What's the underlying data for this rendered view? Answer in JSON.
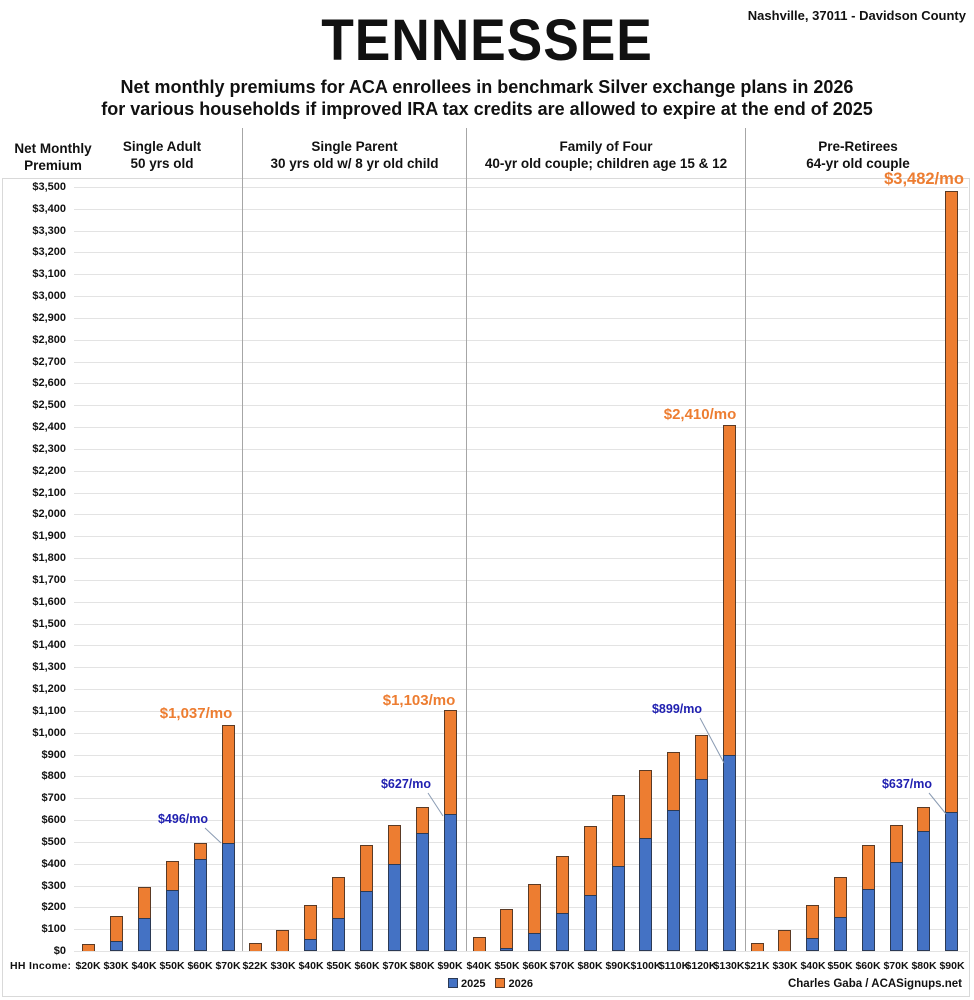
{
  "header": {
    "title": "TENNESSEE",
    "location": "Nashville, 37011 - Davidson County",
    "subtitle_line1": "Net monthly premiums for ACA enrollees in benchmark Silver exchange plans in 2026",
    "subtitle_line2": "for various households if improved IRA tax credits are allowed to expire at the end of 2025"
  },
  "axis": {
    "ylabel_line1": "Net Monthly",
    "ylabel_line2": "Premium",
    "xlabel": "HH Income:"
  },
  "legend": {
    "item_2025": "2025",
    "item_2026": "2026"
  },
  "credit": "Charles Gaba / ACASignups.net",
  "colors": {
    "series_2025": "#4472c4",
    "series_2026": "#ed7d31",
    "annotation_2025": "#1f1fb0",
    "annotation_2026": "#ed7d31"
  },
  "chart_data": {
    "type": "bar",
    "stacked": true,
    "title": "TENNESSEE",
    "subtitle": "Net monthly premiums for ACA enrollees in benchmark Silver exchange plans in 2026 for various households if improved IRA tax credits are allowed to expire at the end of 2025",
    "xlabel": "HH Income:",
    "ylabel": "Net Monthly Premium",
    "ylim": [
      0,
      3500
    ],
    "ytick_step": 100,
    "yticks": [
      "$0",
      "$100",
      "$200",
      "$300",
      "$400",
      "$500",
      "$600",
      "$700",
      "$800",
      "$900",
      "$1,000",
      "$1,100",
      "$1,200",
      "$1,300",
      "$1,400",
      "$1,500",
      "$1,600",
      "$1,700",
      "$1,800",
      "$1,900",
      "$2,000",
      "$2,100",
      "$2,200",
      "$2,300",
      "$2,400",
      "$2,500",
      "$2,600",
      "$2,700",
      "$2,800",
      "$2,900",
      "$3,000",
      "$3,100",
      "$3,200",
      "$3,300",
      "$3,400",
      "$3,500"
    ],
    "grid": true,
    "legend_position": "bottom",
    "series_names": [
      "2025",
      "2026"
    ],
    "panels": [
      {
        "name": "Single Adult",
        "subtitle": "50 yrs old",
        "categories": [
          "$20K",
          "$30K",
          "$40K",
          "$50K",
          "$60K",
          "$70K"
        ],
        "series": [
          {
            "name": "2025",
            "values": [
              0,
              46,
              151,
              280,
              421,
              496
            ]
          },
          {
            "name": "2026",
            "values": [
              32,
              160,
              293,
              412,
              495,
              1037
            ]
          }
        ],
        "annotations": {
          "2025": "$496/mo",
          "2026": "$1,037/mo"
        }
      },
      {
        "name": "Single Parent",
        "subtitle": "30 yrs old w/ 8 yr old child",
        "categories": [
          "$22K",
          "$30K",
          "$40K",
          "$50K",
          "$60K",
          "$70K",
          "$80K",
          "$90K"
        ],
        "series": [
          {
            "name": "2025",
            "values": [
              0,
              0,
              55,
              151,
              275,
              399,
              540,
              627
            ]
          },
          {
            "name": "2026",
            "values": [
              37,
              96,
              211,
              340,
              486,
              577,
              660,
              1103
            ]
          }
        ],
        "annotations": {
          "2025": "$627/mo",
          "2026": "$1,103/mo"
        }
      },
      {
        "name": "Family of Four",
        "subtitle": "40-yr old couple; children age 15 & 12",
        "categories": [
          "$40K",
          "$50K",
          "$60K",
          "$70K",
          "$80K",
          "$90K",
          "$100K",
          "$110K",
          "$120K",
          "$130K"
        ],
        "series": [
          {
            "name": "2025",
            "values": [
              0,
              14,
              82,
              174,
              256,
              389,
              518,
              646,
              788,
              899
            ]
          },
          {
            "name": "2026",
            "values": [
              64,
              192,
              307,
              435,
              572,
              714,
              829,
              911,
              990,
              2410
            ]
          }
        ],
        "annotations": {
          "2025": "$899/mo",
          "2026": "$2,410/mo"
        }
      },
      {
        "name": "Pre-Retirees",
        "subtitle": "64-yr old couple",
        "categories": [
          "$21K",
          "$30K",
          "$40K",
          "$50K",
          "$60K",
          "$70K",
          "$80K",
          "$90K"
        ],
        "series": [
          {
            "name": "2025",
            "values": [
              0,
              0,
              60,
              156,
              284,
              408,
              550,
              637
            ]
          },
          {
            "name": "2026",
            "values": [
              37,
              96,
              211,
              340,
              486,
              577,
              660,
              3482
            ]
          }
        ],
        "annotations": {
          "2025": "$637/mo",
          "2026": "$3,482/mo"
        }
      }
    ]
  }
}
